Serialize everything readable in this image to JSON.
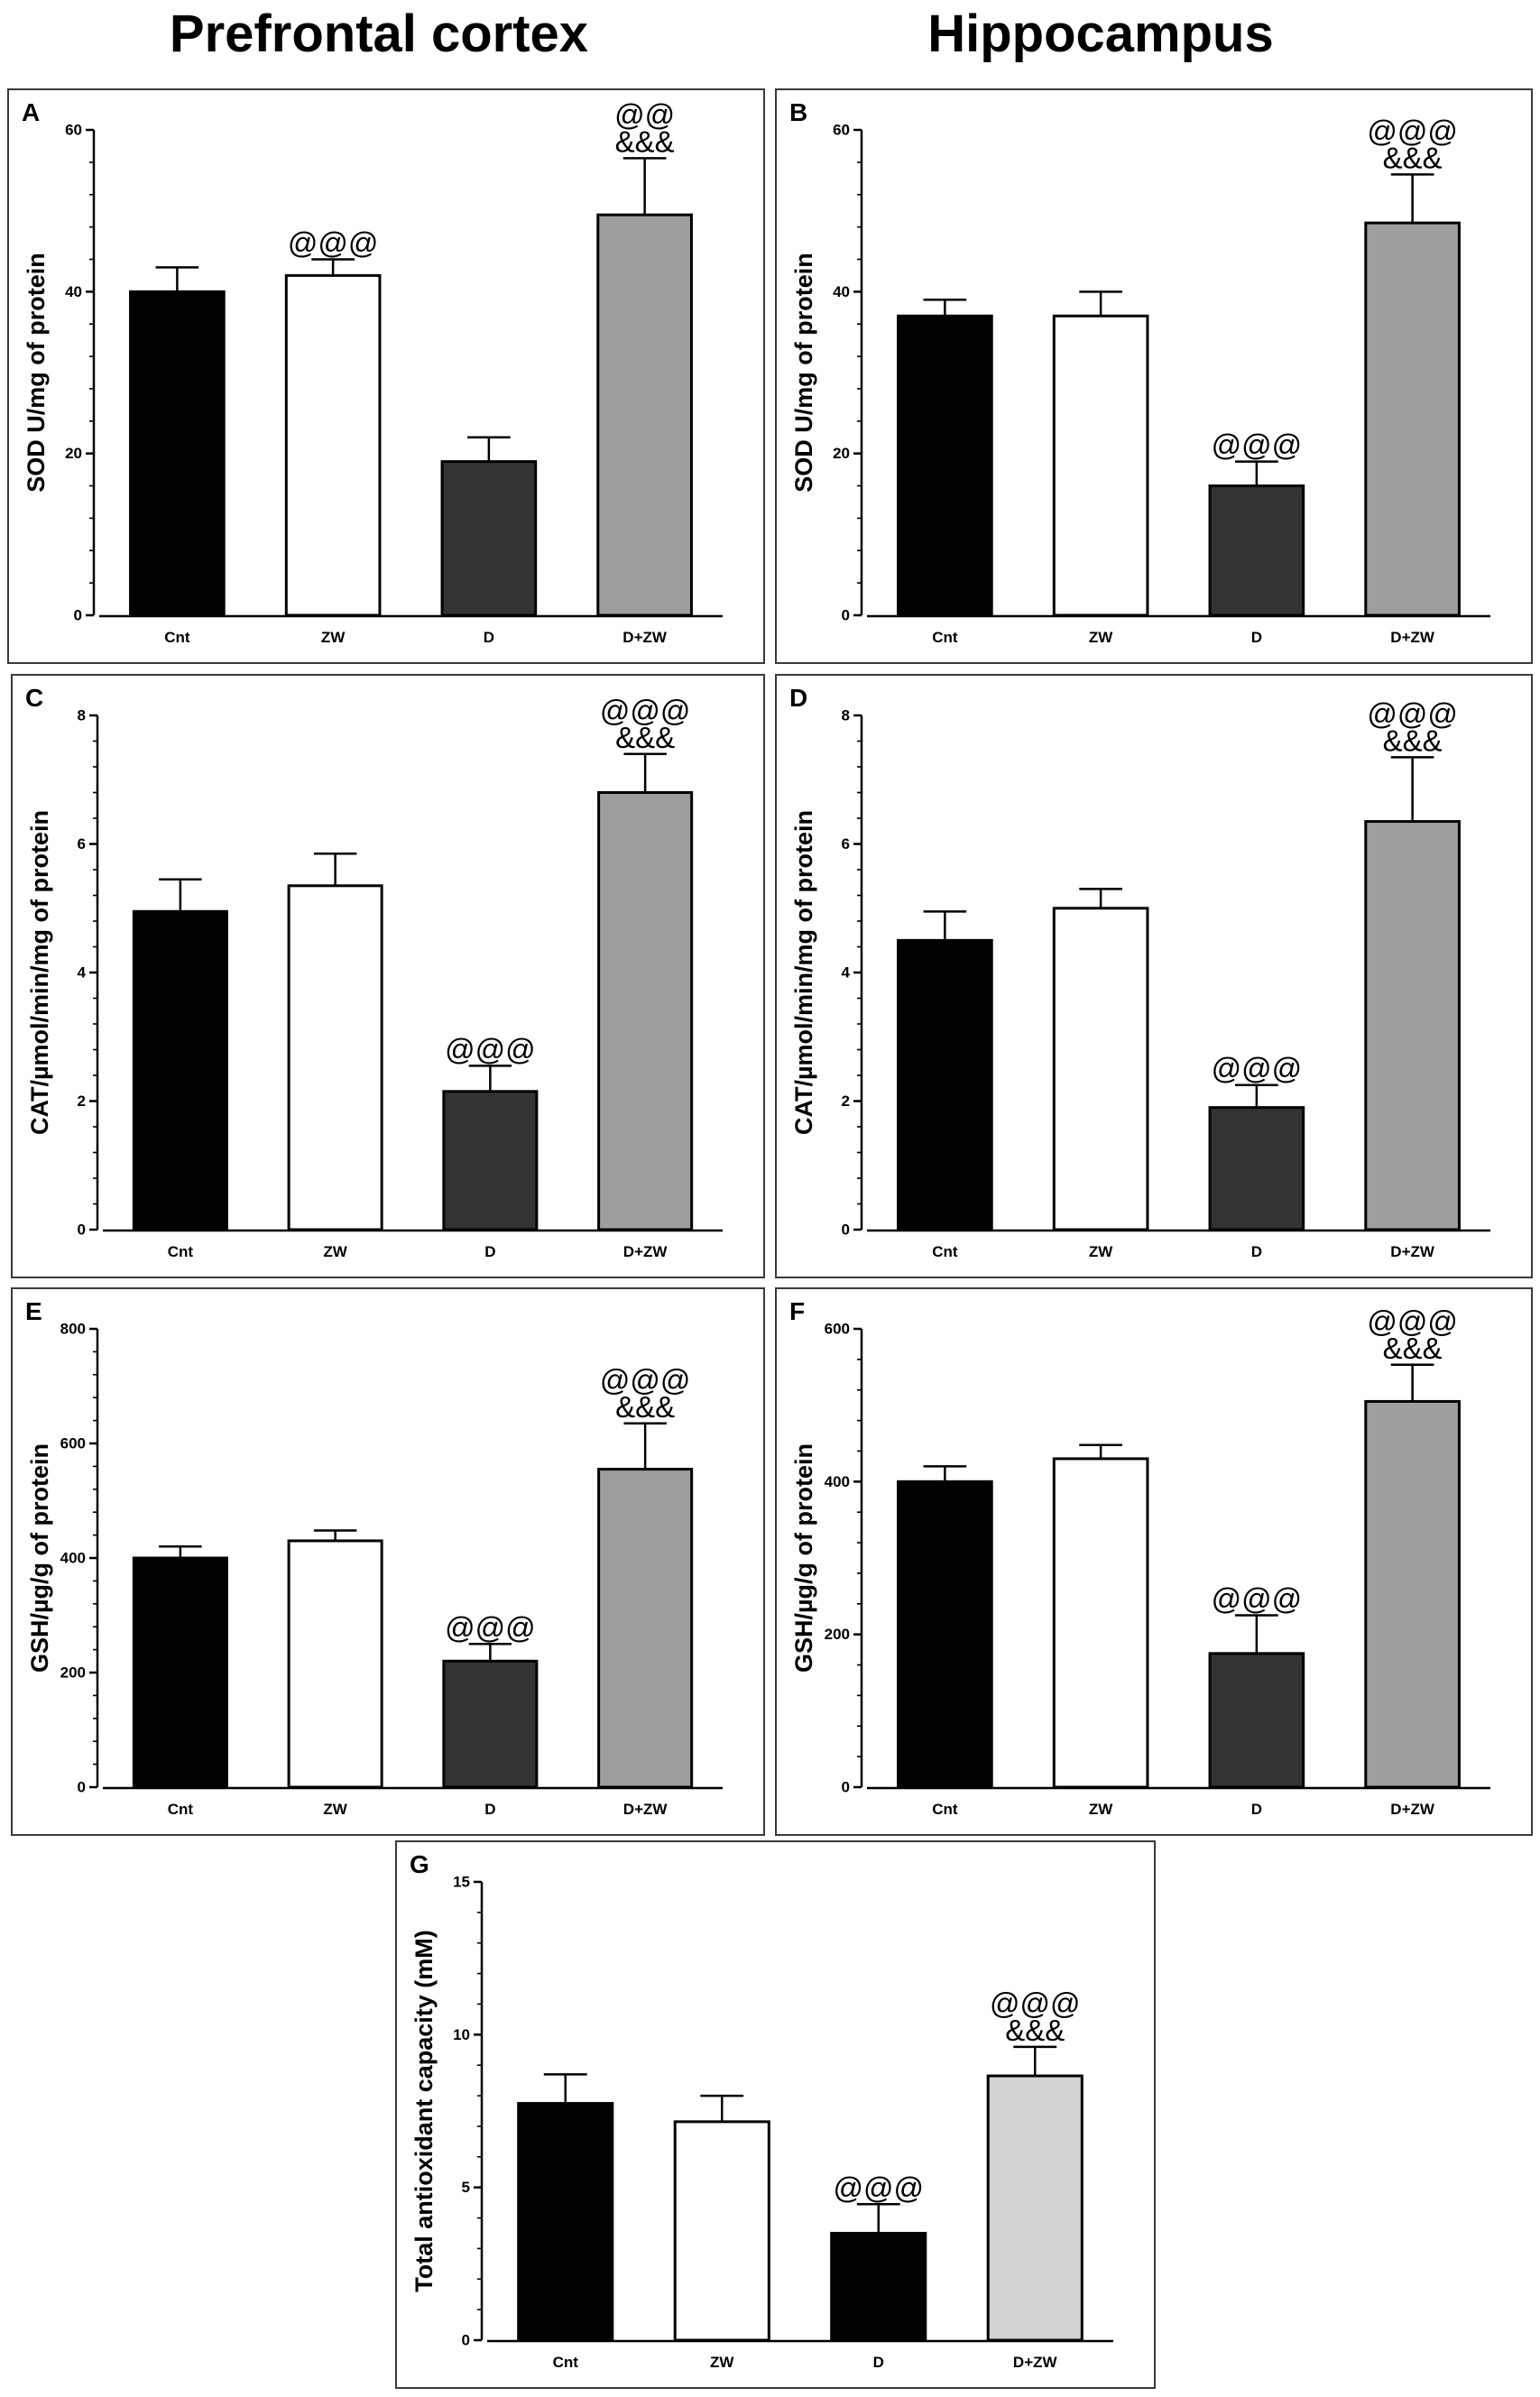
{
  "headings": {
    "left": "Prefrontal cortex",
    "right": "Hippocampus"
  },
  "colors": {
    "black": "#000000",
    "white": "#ffffff",
    "dark_gray": "#333333",
    "mid_gray": "#9e9e9e",
    "light_gray": "#d3d3d3"
  },
  "chart_data": [
    {
      "id": "A",
      "type": "bar",
      "region": "Prefrontal cortex",
      "ylabel": "SOD U/mg of protein",
      "ylim": [
        0,
        60
      ],
      "yticks": [
        0,
        20,
        40,
        60
      ],
      "categories": [
        "Cnt",
        "ZW",
        "D",
        "D+ZW"
      ],
      "values": [
        40,
        42,
        19,
        49.5
      ],
      "errors": [
        3,
        2,
        3,
        7
      ],
      "fills": [
        "#000000",
        "#ffffff",
        "#333333",
        "#9e9e9e"
      ],
      "annotations": [
        [],
        [
          "@@@"
        ],
        [],
        [
          "@@",
          "&&&"
        ]
      ]
    },
    {
      "id": "B",
      "type": "bar",
      "region": "Hippocampus",
      "ylabel": "SOD U/mg of protein",
      "ylim": [
        0,
        60
      ],
      "yticks": [
        0,
        20,
        40,
        60
      ],
      "categories": [
        "Cnt",
        "ZW",
        "D",
        "D+ZW"
      ],
      "values": [
        37,
        37,
        16,
        48.5
      ],
      "errors": [
        2,
        3,
        3,
        6
      ],
      "fills": [
        "#000000",
        "#ffffff",
        "#333333",
        "#9e9e9e"
      ],
      "annotations": [
        [],
        [],
        [
          "@@@"
        ],
        [
          "@@@",
          "&&&"
        ]
      ]
    },
    {
      "id": "C",
      "type": "bar",
      "region": "Prefrontal cortex",
      "ylabel": "CAT/µmol/min/mg of protein",
      "ylim": [
        0,
        8
      ],
      "yticks": [
        0,
        2,
        4,
        6,
        8
      ],
      "categories": [
        "Cnt",
        "ZW",
        "D",
        "D+ZW"
      ],
      "values": [
        4.95,
        5.35,
        2.15,
        6.8
      ],
      "errors": [
        0.5,
        0.5,
        0.4,
        0.6
      ],
      "fills": [
        "#000000",
        "#ffffff",
        "#333333",
        "#9e9e9e"
      ],
      "annotations": [
        [],
        [],
        [
          "@@@"
        ],
        [
          "@@@",
          "&&&"
        ]
      ]
    },
    {
      "id": "D",
      "type": "bar",
      "region": "Hippocampus",
      "ylabel": "CAT/µmol/min/mg of protein",
      "ylim": [
        0,
        8
      ],
      "yticks": [
        0,
        2,
        4,
        6,
        8
      ],
      "categories": [
        "Cnt",
        "ZW",
        "D",
        "D+ZW"
      ],
      "values": [
        4.5,
        5.0,
        1.9,
        6.35
      ],
      "errors": [
        0.45,
        0.3,
        0.35,
        1.0
      ],
      "fills": [
        "#000000",
        "#ffffff",
        "#333333",
        "#9e9e9e"
      ],
      "annotations": [
        [],
        [],
        [
          "@@@"
        ],
        [
          "@@@",
          "&&&"
        ]
      ]
    },
    {
      "id": "E",
      "type": "bar",
      "region": "Prefrontal cortex",
      "ylabel": "GSH/µg/g of protein",
      "ylim": [
        0,
        800
      ],
      "yticks": [
        0,
        200,
        400,
        600,
        800
      ],
      "categories": [
        "Cnt",
        "ZW",
        "D",
        "D+ZW"
      ],
      "values": [
        400,
        430,
        220,
        555
      ],
      "errors": [
        20,
        18,
        30,
        80
      ],
      "fills": [
        "#000000",
        "#ffffff",
        "#333333",
        "#9e9e9e"
      ],
      "annotations": [
        [],
        [],
        [
          "@@@"
        ],
        [
          "@@@",
          "&&&"
        ]
      ]
    },
    {
      "id": "F",
      "type": "bar",
      "region": "Hippocampus",
      "ylabel": "GSH/µg/g of protein",
      "ylim": [
        0,
        600
      ],
      "yticks": [
        0,
        200,
        400,
        600
      ],
      "categories": [
        "Cnt",
        "ZW",
        "D",
        "D+ZW"
      ],
      "values": [
        400,
        430,
        175,
        505
      ],
      "errors": [
        20,
        18,
        50,
        48
      ],
      "fills": [
        "#000000",
        "#ffffff",
        "#333333",
        "#9e9e9e"
      ],
      "annotations": [
        [],
        [],
        [
          "@@@"
        ],
        [
          "@@@",
          "&&&"
        ]
      ]
    },
    {
      "id": "G",
      "type": "bar",
      "region": "",
      "ylabel": "Total antioxidant capacity (mM)",
      "ylim": [
        0,
        15
      ],
      "yticks": [
        0,
        5,
        10,
        15
      ],
      "categories": [
        "Cnt",
        "ZW",
        "D",
        "D+ZW"
      ],
      "values": [
        7.75,
        7.15,
        3.5,
        8.65
      ],
      "errors": [
        0.95,
        0.85,
        0.95,
        0.95
      ],
      "fills": [
        "#000000",
        "#ffffff",
        "#000000",
        "#d3d3d3"
      ],
      "annotations": [
        [],
        [],
        [
          "@@@"
        ],
        [
          "@@@",
          "&&&"
        ]
      ]
    }
  ]
}
